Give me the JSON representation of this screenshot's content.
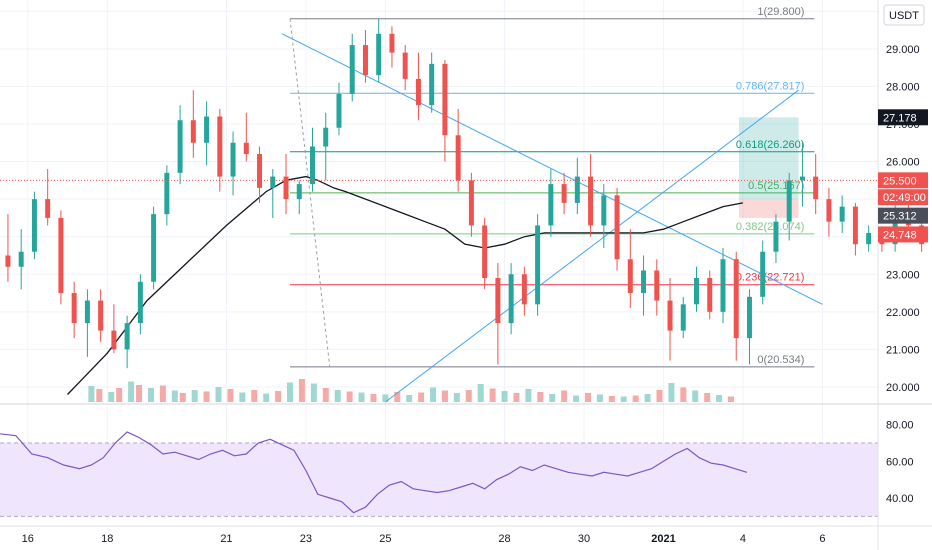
{
  "currency_label": "USDT",
  "price_axis": {
    "ticks": [
      "30.000",
      "29.000",
      "28.000",
      "27.000",
      "26.000",
      "25.000",
      "24.000",
      "23.000",
      "22.000",
      "21.000",
      "20.000"
    ],
    "tick_values": [
      30,
      29,
      28,
      27,
      26,
      25,
      24,
      23,
      22,
      21,
      20
    ],
    "range": [
      19.6,
      30.3
    ]
  },
  "rsi_axis": {
    "ticks": [
      "80.00",
      "60.00",
      "40.00"
    ],
    "tick_values": [
      80,
      60,
      40
    ],
    "range": [
      28,
      88
    ],
    "band": [
      30,
      70
    ]
  },
  "time_axis": {
    "ticks": [
      {
        "label": "16",
        "day": 16
      },
      {
        "label": "18",
        "day": 18
      },
      {
        "label": "21",
        "day": 21
      },
      {
        "label": "23",
        "day": 23
      },
      {
        "label": "25",
        "day": 25
      },
      {
        "label": "28",
        "day": 28
      },
      {
        "label": "30",
        "day": 30
      },
      {
        "label": "2021",
        "day": 32,
        "bold": true
      },
      {
        "label": "4",
        "day": 34
      },
      {
        "label": "6",
        "day": 36
      }
    ],
    "range": [
      15.3,
      37.4
    ]
  },
  "badges": [
    {
      "label": "27.178",
      "value": 27.178,
      "color": "#131722"
    },
    {
      "label": "25.500",
      "value": 25.5,
      "color": "#ef5350"
    },
    {
      "label": "02:49:00",
      "value": 25.05,
      "color": "#ef5350"
    },
    {
      "label": "25.312",
      "value": 24.56,
      "color": "#4a4e59"
    },
    {
      "label": "24.748",
      "value": 24.06,
      "color": "#ef5350"
    }
  ],
  "fib_levels": [
    {
      "label": "1(29.800)",
      "value": 29.8,
      "color": "#787b86"
    },
    {
      "label": "0.786(27.817)",
      "value": 27.817,
      "color": "#64b5f6"
    },
    {
      "label": "0.618(26.260)",
      "value": 26.26,
      "color": "#089981"
    },
    {
      "label": "0.5(25.167)",
      "value": 25.167,
      "color": "#4caf50"
    },
    {
      "label": "0.382(24.074)",
      "value": 24.074,
      "color": "#81c784"
    },
    {
      "label": "0.236(22.721)",
      "value": 22.721,
      "color": "#f23645"
    },
    {
      "label": "0(20.534)",
      "value": 20.534,
      "color": "#787b86"
    }
  ],
  "colors": {
    "up": "#26a69a",
    "down": "#ef5350",
    "ma": "#131722",
    "rsi": "#7e57c2",
    "rsi_band": "#efe5fd",
    "trendline": "#42a5f5",
    "grid": "#f0f3fa"
  },
  "chart_data": {
    "type": "candlestick",
    "ohlc": [
      [
        23.5,
        24.6,
        22.8,
        23.2
      ],
      [
        23.2,
        24.2,
        22.6,
        23.6
      ],
      [
        23.6,
        25.2,
        23.4,
        25.0
      ],
      [
        25.0,
        25.8,
        24.3,
        24.5
      ],
      [
        24.5,
        24.7,
        22.2,
        22.5
      ],
      [
        22.5,
        22.8,
        21.3,
        21.7
      ],
      [
        21.7,
        22.6,
        20.8,
        22.3
      ],
      [
        22.3,
        22.6,
        21.2,
        21.5
      ],
      [
        21.5,
        22.2,
        20.9,
        21.0
      ],
      [
        21.0,
        21.9,
        20.5,
        21.7
      ],
      [
        21.7,
        23.0,
        21.4,
        22.8
      ],
      [
        22.8,
        24.8,
        22.6,
        24.6
      ],
      [
        24.6,
        25.9,
        24.3,
        25.7
      ],
      [
        25.7,
        27.5,
        25.4,
        27.1
      ],
      [
        27.1,
        27.9,
        26.1,
        26.5
      ],
      [
        26.5,
        27.6,
        25.9,
        27.2
      ],
      [
        27.2,
        27.4,
        25.2,
        25.6
      ],
      [
        25.6,
        26.8,
        25.1,
        26.5
      ],
      [
        26.5,
        27.3,
        26.0,
        26.2
      ],
      [
        26.2,
        26.4,
        24.9,
        25.3
      ],
      [
        25.3,
        25.8,
        24.5,
        25.6
      ],
      [
        25.6,
        26.2,
        24.6,
        25.0
      ],
      [
        25.0,
        25.5,
        24.6,
        25.4
      ],
      [
        25.4,
        26.9,
        25.2,
        26.4
      ],
      [
        26.4,
        27.3,
        25.5,
        26.9
      ],
      [
        26.9,
        28.1,
        26.7,
        27.8
      ],
      [
        27.8,
        29.4,
        27.6,
        29.1
      ],
      [
        29.1,
        29.5,
        28.1,
        28.3
      ],
      [
        28.3,
        29.8,
        28.1,
        29.4
      ],
      [
        29.4,
        29.6,
        28.5,
        28.9
      ],
      [
        28.9,
        29.1,
        27.9,
        28.2
      ],
      [
        28.2,
        28.9,
        27.1,
        27.5
      ],
      [
        27.5,
        28.9,
        27.3,
        28.6
      ],
      [
        28.6,
        28.7,
        26.0,
        26.7
      ],
      [
        26.7,
        27.4,
        25.2,
        25.5
      ],
      [
        25.5,
        25.7,
        24.0,
        24.3
      ],
      [
        24.3,
        24.5,
        22.6,
        22.9
      ],
      [
        22.9,
        23.3,
        20.6,
        21.7
      ],
      [
        21.7,
        23.3,
        21.4,
        23.0
      ],
      [
        23.0,
        23.2,
        21.9,
        22.2
      ],
      [
        22.2,
        24.6,
        21.9,
        24.3
      ],
      [
        24.3,
        25.8,
        24.0,
        25.4
      ],
      [
        25.4,
        25.7,
        24.6,
        24.9
      ],
      [
        24.9,
        26.1,
        24.6,
        25.6
      ],
      [
        25.6,
        26.2,
        24.0,
        24.3
      ],
      [
        24.3,
        25.4,
        23.7,
        25.1
      ],
      [
        25.1,
        25.3,
        23.1,
        23.4
      ],
      [
        23.4,
        24.2,
        22.1,
        22.5
      ],
      [
        22.5,
        23.5,
        21.9,
        23.1
      ],
      [
        23.1,
        23.4,
        21.9,
        22.3
      ],
      [
        22.3,
        22.9,
        20.7,
        21.5
      ],
      [
        21.5,
        22.4,
        21.3,
        22.2
      ],
      [
        22.2,
        23.2,
        22.0,
        22.9
      ],
      [
        22.9,
        23.1,
        21.8,
        22.0
      ],
      [
        22.0,
        23.7,
        21.7,
        23.4
      ],
      [
        23.4,
        23.6,
        20.7,
        21.3
      ],
      [
        21.3,
        22.6,
        20.6,
        22.4
      ],
      [
        22.4,
        23.9,
        22.2,
        23.6
      ],
      [
        23.6,
        24.6,
        23.3,
        24.4
      ],
      [
        24.4,
        25.7,
        23.9,
        25.5
      ],
      [
        25.5,
        26.5,
        24.8,
        25.6
      ],
      [
        25.6,
        26.2,
        24.6,
        25.0
      ],
      [
        25.0,
        25.3,
        24.0,
        24.4
      ],
      [
        24.4,
        25.1,
        24.1,
        24.8
      ],
      [
        24.8,
        24.9,
        23.5,
        23.8
      ],
      [
        23.8,
        24.3,
        23.6,
        24.1
      ],
      [
        24.1,
        24.2,
        23.6,
        23.8
      ],
      [
        23.8,
        25.0,
        23.6,
        24.6
      ],
      [
        24.6,
        25.1,
        24.0,
        24.3
      ],
      [
        24.3,
        24.5,
        23.6,
        23.8
      ],
      [
        23.8,
        24.4,
        23.7,
        24.2
      ],
      [
        24.2,
        24.3,
        23.5,
        23.7
      ],
      [
        23.7,
        24.6,
        23.6,
        24.4
      ],
      [
        24.4,
        25.0,
        24.2,
        24.7
      ],
      [
        24.7,
        26.4,
        24.6,
        26.1
      ],
      [
        26.1,
        27.2,
        25.8,
        26.6
      ],
      [
        26.6,
        27.1,
        25.4,
        25.6
      ],
      [
        25.6,
        26.6,
        25.4,
        26.1
      ],
      [
        26.1,
        27.0,
        25.2,
        25.5
      ],
      [
        25.5,
        26.5,
        25.3,
        26.3
      ],
      [
        26.3,
        26.5,
        25.6,
        25.8
      ],
      [
        25.8,
        26.4,
        25.5,
        25.5
      ]
    ],
    "ohlc_start_day": 15.5,
    "ohlc_step_days": 0.3333,
    "moving_average": [
      [
        17.0,
        19.8
      ],
      [
        18.0,
        20.9
      ],
      [
        19.0,
        22.3
      ],
      [
        20.0,
        23.3
      ],
      [
        21.0,
        24.3
      ],
      [
        22.0,
        25.2
      ],
      [
        22.5,
        25.5
      ],
      [
        23.0,
        25.6
      ],
      [
        23.3,
        25.5
      ],
      [
        23.7,
        25.3
      ],
      [
        24.0,
        25.2
      ],
      [
        24.5,
        25.0
      ],
      [
        25.0,
        24.8
      ],
      [
        25.5,
        24.6
      ],
      [
        26.0,
        24.4
      ],
      [
        26.5,
        24.2
      ],
      [
        27.0,
        23.8
      ],
      [
        27.5,
        23.7
      ],
      [
        28.0,
        23.8
      ],
      [
        28.5,
        24.0
      ],
      [
        29.0,
        24.1
      ],
      [
        29.5,
        24.1
      ],
      [
        30.0,
        24.1
      ],
      [
        30.5,
        24.1
      ],
      [
        31.0,
        24.1
      ],
      [
        31.5,
        24.1
      ],
      [
        32.0,
        24.2
      ],
      [
        32.5,
        24.4
      ],
      [
        33.0,
        24.6
      ],
      [
        33.5,
        24.8
      ],
      [
        34.0,
        24.9
      ]
    ],
    "volume_scale": [
      0,
      14
    ],
    "volumes": [
      [
        17.6,
        3.2,
        "up"
      ],
      [
        17.8,
        2.6,
        "down"
      ],
      [
        18.1,
        2.0,
        "up"
      ],
      [
        18.3,
        2.8,
        "down"
      ],
      [
        18.6,
        4.1,
        "up"
      ],
      [
        18.8,
        3.4,
        "down"
      ],
      [
        19.1,
        2.8,
        "up"
      ],
      [
        19.4,
        3.3,
        "down"
      ],
      [
        19.7,
        2.3,
        "up"
      ],
      [
        19.9,
        1.8,
        "down"
      ],
      [
        20.2,
        2.4,
        "up"
      ],
      [
        20.5,
        2.1,
        "down"
      ],
      [
        20.8,
        3.0,
        "up"
      ],
      [
        21.1,
        2.6,
        "down"
      ],
      [
        21.4,
        1.9,
        "up"
      ],
      [
        21.7,
        2.4,
        "down"
      ],
      [
        22.0,
        1.7,
        "up"
      ],
      [
        22.3,
        2.2,
        "down"
      ],
      [
        22.6,
        3.9,
        "up"
      ],
      [
        22.9,
        4.6,
        "down"
      ],
      [
        23.2,
        3.7,
        "up"
      ],
      [
        23.5,
        2.8,
        "down"
      ],
      [
        23.8,
        2.4,
        "up"
      ],
      [
        24.1,
        2.1,
        "down"
      ],
      [
        24.4,
        1.9,
        "up"
      ],
      [
        24.7,
        1.6,
        "down"
      ],
      [
        25.0,
        1.5,
        "up"
      ],
      [
        25.3,
        2.0,
        "down"
      ],
      [
        25.6,
        1.4,
        "up"
      ],
      [
        25.9,
        1.9,
        "down"
      ],
      [
        26.2,
        2.9,
        "up"
      ],
      [
        26.5,
        2.3,
        "down"
      ],
      [
        26.8,
        1.8,
        "up"
      ],
      [
        27.1,
        2.4,
        "down"
      ],
      [
        27.4,
        3.6,
        "up"
      ],
      [
        27.7,
        2.7,
        "down"
      ],
      [
        28.0,
        2.2,
        "up"
      ],
      [
        28.3,
        1.8,
        "down"
      ],
      [
        28.6,
        2.6,
        "up"
      ],
      [
        28.9,
        2.0,
        "down"
      ],
      [
        29.2,
        1.6,
        "up"
      ],
      [
        29.5,
        2.3,
        "down"
      ],
      [
        29.8,
        1.3,
        "up"
      ],
      [
        30.1,
        1.8,
        "down"
      ],
      [
        30.4,
        1.5,
        "up"
      ],
      [
        30.7,
        1.2,
        "down"
      ],
      [
        31.0,
        1.1,
        "up"
      ],
      [
        31.3,
        1.3,
        "down"
      ],
      [
        31.6,
        1.6,
        "up"
      ],
      [
        31.9,
        2.4,
        "down"
      ],
      [
        32.2,
        3.8,
        "up"
      ],
      [
        32.5,
        2.9,
        "down"
      ],
      [
        32.8,
        2.3,
        "up"
      ],
      [
        33.1,
        1.8,
        "down"
      ],
      [
        33.4,
        1.4,
        "up"
      ],
      [
        33.7,
        1.1,
        "down"
      ]
    ],
    "rsi": [
      [
        15.3,
        75
      ],
      [
        15.7,
        74
      ],
      [
        16.1,
        64
      ],
      [
        16.5,
        62
      ],
      [
        16.9,
        58
      ],
      [
        17.3,
        56
      ],
      [
        17.6,
        58
      ],
      [
        17.9,
        62
      ],
      [
        18.2,
        70
      ],
      [
        18.5,
        76
      ],
      [
        18.8,
        73
      ],
      [
        19.1,
        69
      ],
      [
        19.4,
        64
      ],
      [
        19.7,
        65
      ],
      [
        20.0,
        63
      ],
      [
        20.3,
        61
      ],
      [
        20.6,
        64
      ],
      [
        20.9,
        66
      ],
      [
        21.2,
        63
      ],
      [
        21.5,
        64
      ],
      [
        21.8,
        70
      ],
      [
        22.1,
        72
      ],
      [
        22.4,
        69
      ],
      [
        22.7,
        66
      ],
      [
        23.0,
        55
      ],
      [
        23.3,
        42
      ],
      [
        23.6,
        40
      ],
      [
        23.9,
        38
      ],
      [
        24.2,
        32
      ],
      [
        24.5,
        35
      ],
      [
        24.8,
        42
      ],
      [
        25.1,
        47
      ],
      [
        25.4,
        49
      ],
      [
        25.7,
        45
      ],
      [
        26.0,
        44
      ],
      [
        26.3,
        43
      ],
      [
        26.6,
        44
      ],
      [
        26.9,
        46
      ],
      [
        27.2,
        48
      ],
      [
        27.5,
        45
      ],
      [
        27.8,
        50
      ],
      [
        28.1,
        53
      ],
      [
        28.4,
        57
      ],
      [
        28.7,
        55
      ],
      [
        29.0,
        58
      ],
      [
        29.3,
        56
      ],
      [
        29.6,
        54
      ],
      [
        29.9,
        53
      ],
      [
        30.2,
        52
      ],
      [
        30.5,
        54
      ],
      [
        30.8,
        53
      ],
      [
        31.1,
        52
      ],
      [
        31.4,
        54
      ],
      [
        31.7,
        56
      ],
      [
        32.0,
        60
      ],
      [
        32.3,
        64
      ],
      [
        32.6,
        67
      ],
      [
        32.9,
        62
      ],
      [
        33.2,
        59
      ],
      [
        33.5,
        58
      ],
      [
        33.8,
        56
      ],
      [
        34.1,
        54
      ]
    ],
    "trendlines": [
      {
        "from": [
          22.4,
          29.4
        ],
        "to": [
          36.0,
          22.2
        ]
      },
      {
        "from": [
          25.0,
          19.6
        ],
        "to": [
          35.4,
          27.9
        ]
      }
    ],
    "position_box": {
      "x_from": 33.9,
      "x_to": 35.4,
      "target": 27.178,
      "entry": 25.0,
      "stop": 24.5
    },
    "current_price_line": 25.5
  }
}
